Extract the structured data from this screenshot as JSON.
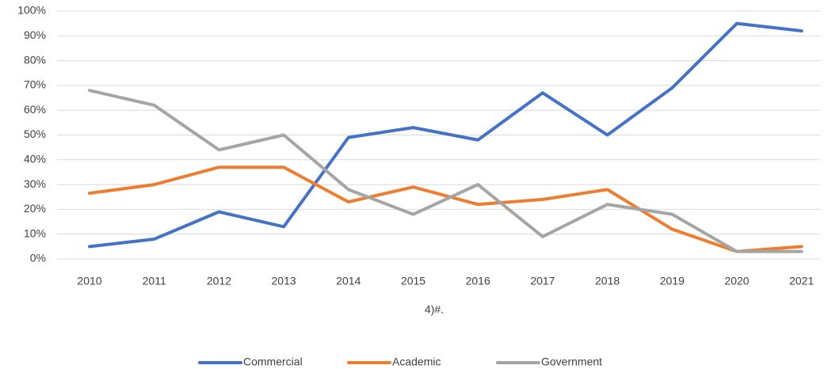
{
  "chart_data": {
    "type": "line",
    "categories": [
      "2010",
      "2011",
      "2012",
      "2013",
      "2014",
      "2015",
      "2016",
      "2017",
      "2018",
      "2019",
      "2020",
      "2021"
    ],
    "series": [
      {
        "name": "Commercial",
        "color": "#4472c4",
        "values": [
          5,
          8,
          19,
          13,
          49,
          53,
          48,
          67,
          50,
          69,
          95,
          92
        ]
      },
      {
        "name": "Academic",
        "color": "#ed7d31",
        "values": [
          26.5,
          30,
          37,
          37,
          23,
          29,
          22,
          24,
          28,
          12,
          3,
          5
        ]
      },
      {
        "name": "Government",
        "color": "#a5a5a5",
        "values": [
          68,
          62,
          44,
          50,
          28,
          18,
          30,
          9,
          22,
          18,
          3,
          3
        ]
      }
    ],
    "ylim": [
      0,
      100
    ],
    "yticks": [
      {
        "value": 0,
        "label": "0%"
      },
      {
        "value": 10,
        "label": "10%"
      },
      {
        "value": 20,
        "label": "20%"
      },
      {
        "value": 30,
        "label": "30%"
      },
      {
        "value": 40,
        "label": "40%"
      },
      {
        "value": 50,
        "label": "50%"
      },
      {
        "value": 60,
        "label": "60%"
      },
      {
        "value": 70,
        "label": "70%"
      },
      {
        "value": 80,
        "label": "80%"
      },
      {
        "value": 90,
        "label": "90%"
      },
      {
        "value": 100,
        "label": "100%"
      }
    ],
    "x_label": "4)#.",
    "grid": true,
    "legend": "bottom"
  }
}
